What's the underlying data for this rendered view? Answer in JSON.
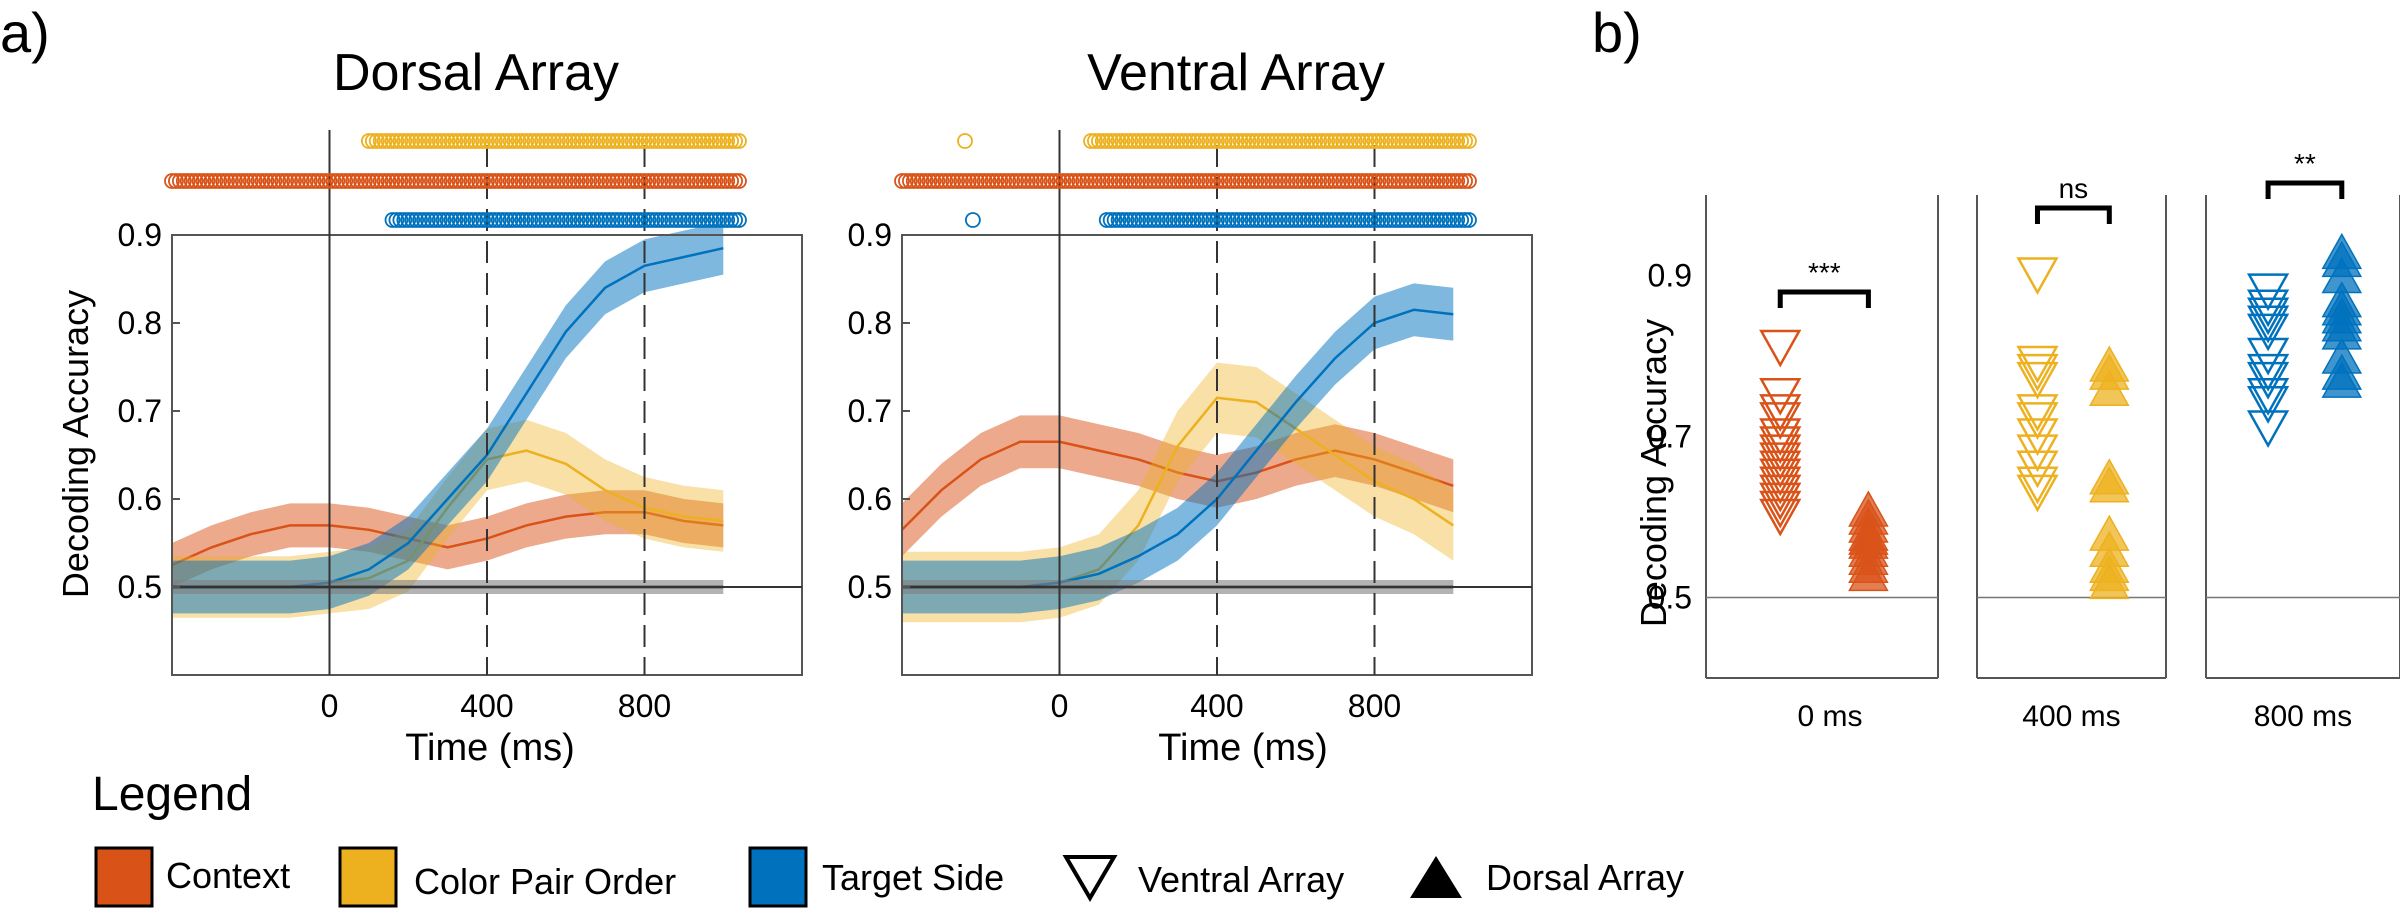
{
  "panel_labels": {
    "a": "a)",
    "b": "b)"
  },
  "colors": {
    "context": "#D95319",
    "color_pair_order": "#EDB120",
    "target_side": "#0072BD",
    "chance": "#000000"
  },
  "legend": {
    "title": "Legend",
    "items": [
      {
        "label": "Context",
        "kind": "swatch",
        "color": "#D95319"
      },
      {
        "label": "Color Pair Order",
        "kind": "swatch",
        "color": "#EDB120"
      },
      {
        "label": "Target Side",
        "kind": "swatch",
        "color": "#0072BD"
      },
      {
        "label": "Ventral Array",
        "kind": "triangle-down-open"
      },
      {
        "label": "Dorsal Array",
        "kind": "triangle-up-filled"
      }
    ]
  },
  "chart_data": [
    {
      "type": "line",
      "title": "Dorsal Array",
      "xlabel": "Time (ms)",
      "ylabel": "Decoding Accuracy",
      "xlim": [
        -400,
        1200
      ],
      "ylim": [
        0.4,
        0.9
      ],
      "xticks": [
        0,
        400,
        800
      ],
      "yticks": [
        0.5,
        0.6,
        0.7,
        0.8,
        0.9
      ],
      "reference_lines_x": [
        0,
        400,
        800
      ],
      "series": [
        {
          "key": "context",
          "color": "#D95319",
          "x": [
            -400,
            -300,
            -200,
            -100,
            0,
            100,
            200,
            300,
            400,
            500,
            600,
            700,
            800,
            900,
            1000
          ],
          "y": [
            0.525,
            0.545,
            0.56,
            0.57,
            0.57,
            0.565,
            0.555,
            0.545,
            0.555,
            0.57,
            0.58,
            0.585,
            0.585,
            0.575,
            0.57
          ],
          "band": 0.025
        },
        {
          "key": "color_pair_order",
          "color": "#EDB120",
          "x": [
            -400,
            -300,
            -200,
            -100,
            0,
            100,
            200,
            300,
            400,
            500,
            600,
            700,
            800,
            900,
            1000
          ],
          "y": [
            0.5,
            0.5,
            0.5,
            0.5,
            0.505,
            0.51,
            0.53,
            0.59,
            0.645,
            0.655,
            0.64,
            0.61,
            0.59,
            0.58,
            0.575
          ],
          "band": 0.035
        },
        {
          "key": "target_side",
          "color": "#0072BD",
          "x": [
            -400,
            -300,
            -200,
            -100,
            0,
            100,
            200,
            300,
            400,
            500,
            600,
            700,
            800,
            900,
            1000
          ],
          "y": [
            0.5,
            0.5,
            0.5,
            0.5,
            0.505,
            0.52,
            0.55,
            0.6,
            0.65,
            0.72,
            0.79,
            0.84,
            0.865,
            0.875,
            0.885
          ],
          "band": 0.03
        },
        {
          "key": "chance",
          "color": "#000000",
          "x": [
            -400,
            -300,
            -200,
            -100,
            0,
            100,
            200,
            300,
            400,
            500,
            600,
            700,
            800,
            900,
            1000
          ],
          "y": [
            0.5,
            0.5,
            0.5,
            0.5,
            0.5,
            0.5,
            0.5,
            0.5,
            0.5,
            0.5,
            0.5,
            0.5,
            0.5,
            0.5,
            0.5
          ],
          "band": 0.008
        }
      ],
      "significance": [
        {
          "key": "color_pair_order",
          "color": "#EDB120",
          "from": 100,
          "to": 1040
        },
        {
          "key": "context",
          "color": "#D95319",
          "from": -400,
          "to": 1040
        },
        {
          "key": "target_side",
          "color": "#0072BD",
          "from": 160,
          "to": 1040
        }
      ]
    },
    {
      "type": "line",
      "title": "Ventral Array",
      "xlabel": "Time (ms)",
      "ylabel": "",
      "xlim": [
        -400,
        1200
      ],
      "ylim": [
        0.4,
        0.9
      ],
      "xticks": [
        0,
        400,
        800
      ],
      "yticks": [
        0.5,
        0.6,
        0.7,
        0.8,
        0.9
      ],
      "reference_lines_x": [
        0,
        400,
        800
      ],
      "series": [
        {
          "key": "context",
          "color": "#D95319",
          "x": [
            -400,
            -300,
            -200,
            -100,
            0,
            100,
            200,
            300,
            400,
            500,
            600,
            700,
            800,
            900,
            1000
          ],
          "y": [
            0.565,
            0.61,
            0.645,
            0.665,
            0.665,
            0.655,
            0.645,
            0.63,
            0.62,
            0.63,
            0.645,
            0.655,
            0.645,
            0.63,
            0.615
          ],
          "band": 0.03
        },
        {
          "key": "color_pair_order",
          "color": "#EDB120",
          "x": [
            -400,
            -300,
            -200,
            -100,
            0,
            100,
            200,
            300,
            400,
            500,
            600,
            700,
            800,
            900,
            1000
          ],
          "y": [
            0.5,
            0.5,
            0.5,
            0.5,
            0.505,
            0.52,
            0.57,
            0.66,
            0.715,
            0.71,
            0.68,
            0.65,
            0.62,
            0.6,
            0.57
          ],
          "band": 0.04
        },
        {
          "key": "target_side",
          "color": "#0072BD",
          "x": [
            -400,
            -300,
            -200,
            -100,
            0,
            100,
            200,
            300,
            400,
            500,
            600,
            700,
            800,
            900,
            1000
          ],
          "y": [
            0.5,
            0.5,
            0.5,
            0.5,
            0.505,
            0.515,
            0.535,
            0.56,
            0.6,
            0.655,
            0.71,
            0.76,
            0.8,
            0.815,
            0.81
          ],
          "band": 0.03
        },
        {
          "key": "chance",
          "color": "#000000",
          "x": [
            -400,
            -300,
            -200,
            -100,
            0,
            100,
            200,
            300,
            400,
            500,
            600,
            700,
            800,
            900,
            1000
          ],
          "y": [
            0.5,
            0.5,
            0.5,
            0.5,
            0.5,
            0.5,
            0.5,
            0.5,
            0.5,
            0.5,
            0.5,
            0.5,
            0.5,
            0.5,
            0.5
          ],
          "band": 0.008
        }
      ],
      "significance": [
        {
          "key": "color_pair_order",
          "color": "#EDB120",
          "from": 80,
          "to": 1040,
          "extra": [
            -240
          ]
        },
        {
          "key": "context",
          "color": "#D95319",
          "from": -400,
          "to": 1040
        },
        {
          "key": "target_side",
          "color": "#0072BD",
          "from": 120,
          "to": 1040,
          "extra": [
            -220
          ]
        }
      ]
    },
    {
      "type": "scatter",
      "title": "",
      "ylabel": "Decoding Accuracy",
      "ylim": [
        0.4,
        1.0
      ],
      "yticks": [
        0.5,
        0.7,
        0.9
      ],
      "chance": 0.5,
      "groups": [
        {
          "label": "0 ms",
          "color": "#D95319",
          "ventral": [
            0.81,
            0.75,
            0.73,
            0.72,
            0.7,
            0.69,
            0.68,
            0.67,
            0.66,
            0.65,
            0.64,
            0.63,
            0.62,
            0.61,
            0.6
          ],
          "dorsal": [
            0.61,
            0.6,
            0.59,
            0.58,
            0.575,
            0.57,
            0.56,
            0.55,
            0.54,
            0.53
          ],
          "significance": "***"
        },
        {
          "label": "400 ms",
          "color": "#EDB120",
          "ventral": [
            0.9,
            0.79,
            0.78,
            0.77,
            0.73,
            0.72,
            0.7,
            0.68,
            0.66,
            0.64,
            0.63
          ],
          "dorsal": [
            0.79,
            0.78,
            0.76,
            0.65,
            0.64,
            0.58,
            0.56,
            0.54,
            0.53,
            0.52
          ],
          "significance": "ns"
        },
        {
          "label": "800 ms",
          "color": "#0072BD",
          "ventral": [
            0.88,
            0.86,
            0.85,
            0.84,
            0.83,
            0.8,
            0.78,
            0.77,
            0.75,
            0.74,
            0.71
          ],
          "dorsal": [
            0.93,
            0.92,
            0.9,
            0.87,
            0.86,
            0.85,
            0.84,
            0.83,
            0.8,
            0.78,
            0.77
          ],
          "significance": "**"
        }
      ]
    }
  ]
}
